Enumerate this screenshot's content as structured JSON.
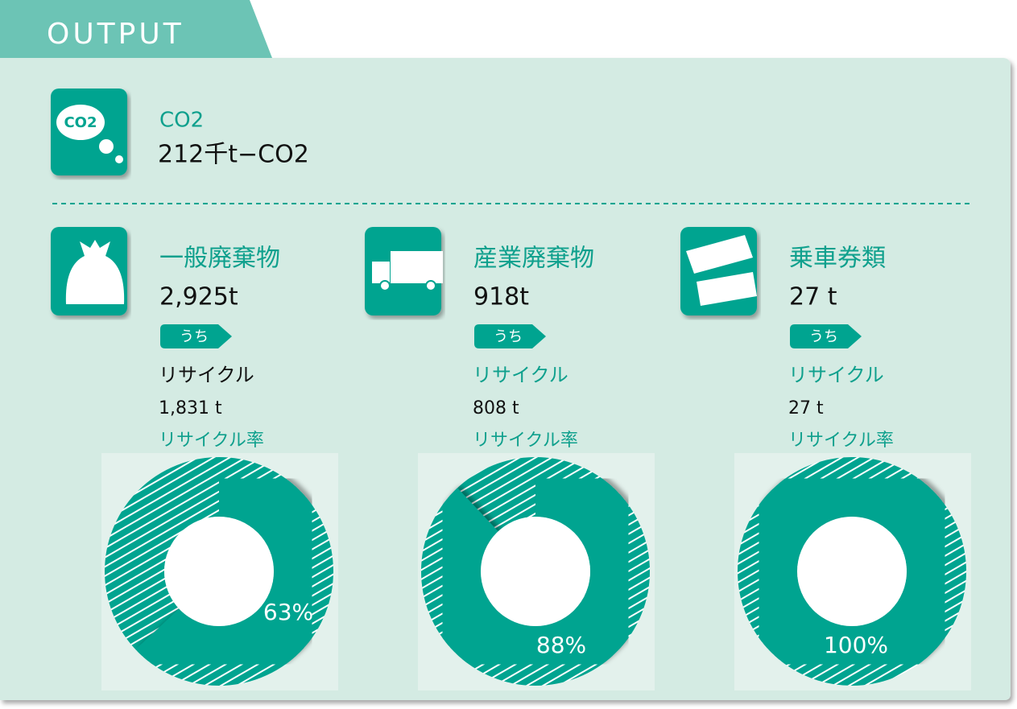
{
  "header": {
    "title": "OUTPUT"
  },
  "co2": {
    "icon_label": "CO2",
    "title": "CO2",
    "amount": "212千t−CO2"
  },
  "items": [
    {
      "title": "一般廃棄物",
      "amount": "2,925t",
      "tag": "うち",
      "recycle_label": "リサイクル",
      "recycle_amount": "1,831 t",
      "rate_label": "リサイクル率",
      "rate": {
        "value": 63,
        "label": "63%"
      }
    },
    {
      "title": "産業廃棄物",
      "amount": "918t",
      "tag": "うち",
      "recycle_label": "リサイクル",
      "recycle_amount": "808 t",
      "rate_label": "リサイクル率",
      "rate": {
        "value": 88,
        "label": "88%"
      }
    },
    {
      "title": "乗車券類",
      "amount": "27 t",
      "tag": "うち",
      "recycle_label": "リサイクル",
      "recycle_amount": "27 t",
      "rate_label": "リサイクル率",
      "rate": {
        "value": 100,
        "label": "100%"
      }
    }
  ]
}
